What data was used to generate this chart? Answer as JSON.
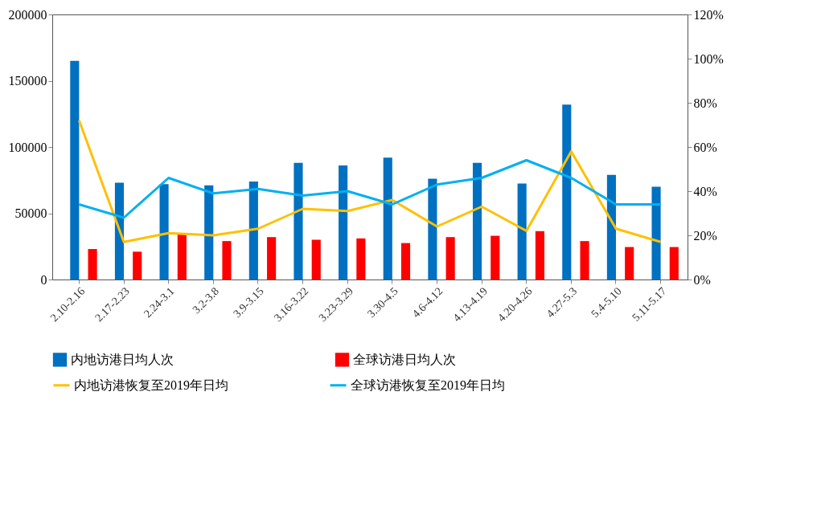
{
  "chart_data": {
    "type": "bar",
    "categories": [
      "2.10-2.16",
      "2.17-2.23",
      "2.24-3.1",
      "3.2-3.8",
      "3.9-3.15",
      "3.16-3.22",
      "3.23-3.29",
      "3.30-4.5",
      "4.6-4.12",
      "4.13-4.19",
      "4.20-4.26",
      "4.27-5.3",
      "5.4-5.10",
      "5.11-5.17"
    ],
    "series": [
      {
        "name": "内地访港日均人次",
        "color": "#0070c0",
        "values": [
          165000,
          73000,
          72000,
          71000,
          74000,
          88000,
          86000,
          92000,
          76000,
          88000,
          72500,
          132000,
          79000,
          70000
        ]
      },
      {
        "name": "全球访港日均人次",
        "color": "#ff0000",
        "values": [
          23000,
          21000,
          34000,
          29000,
          32000,
          30000,
          31000,
          27500,
          32000,
          33000,
          36500,
          29000,
          24500,
          24500
        ]
      },
      {
        "name": "内地访港恢复至2019年日均",
        "type": "line",
        "axis": "y2",
        "color": "#ffc000",
        "values": [
          72,
          17,
          21,
          20,
          23,
          32,
          31,
          36,
          24,
          33,
          22,
          58,
          23,
          17
        ]
      },
      {
        "name": "全球访港恢复至2019年日均",
        "type": "line",
        "axis": "y2",
        "color": "#00b0f0",
        "values": [
          34,
          28,
          46,
          39,
          41,
          38,
          40,
          34,
          43,
          46,
          54,
          46,
          34,
          34
        ]
      }
    ],
    "ylim": [
      0,
      200000
    ],
    "yticks": [
      0,
      50000,
      100000,
      150000,
      200000
    ],
    "y2lim": [
      0,
      120
    ],
    "y2ticks": [
      {
        "value": 0,
        "label": "0%"
      },
      {
        "value": 20,
        "label": "20%"
      },
      {
        "value": 40,
        "label": "40%"
      },
      {
        "value": 60,
        "label": "60%"
      },
      {
        "value": 80,
        "label": "80%"
      },
      {
        "value": 100,
        "label": "100%"
      },
      {
        "value": 120,
        "label": "120%"
      }
    ],
    "legend": "bottom"
  }
}
